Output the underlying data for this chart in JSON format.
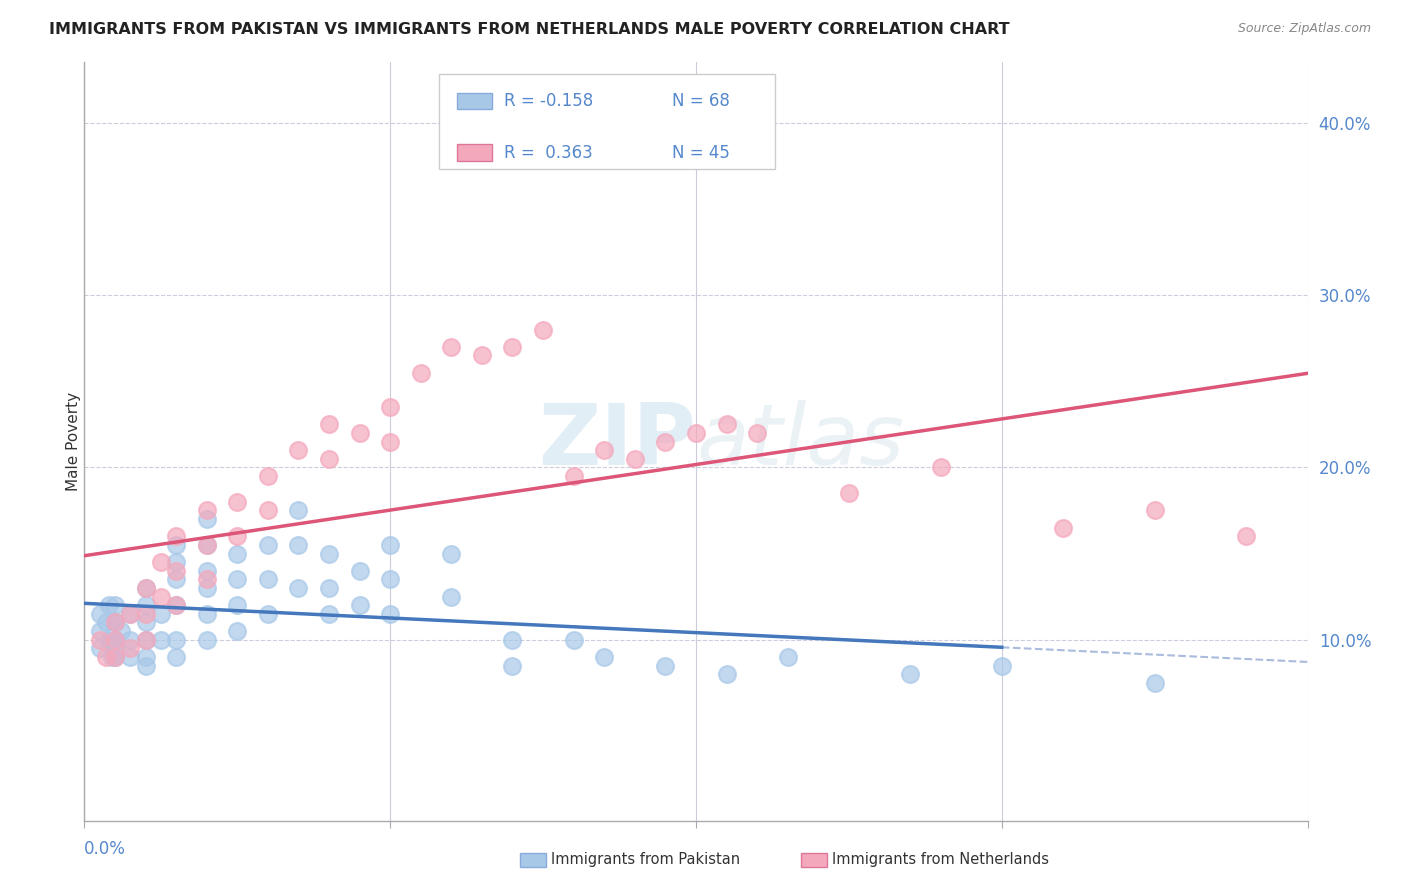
{
  "title": "IMMIGRANTS FROM PAKISTAN VS IMMIGRANTS FROM NETHERLANDS MALE POVERTY CORRELATION CHART",
  "source": "Source: ZipAtlas.com",
  "ylabel": "Male Poverty",
  "y_ticks": [
    "10.0%",
    "20.0%",
    "30.0%",
    "40.0%"
  ],
  "y_tick_vals": [
    0.1,
    0.2,
    0.3,
    0.4
  ],
  "xlim": [
    0.0,
    0.4
  ],
  "ylim": [
    -0.005,
    0.435
  ],
  "r_pakistan": -0.158,
  "n_pakistan": 68,
  "r_netherlands": 0.363,
  "n_netherlands": 45,
  "color_pakistan": "#a8c8e8",
  "color_netherlands": "#f4a8bc",
  "line_color_pakistan": "#4477bb",
  "line_color_netherlands": "#dd5577",
  "legend_label_pakistan": "Immigrants from Pakistan",
  "legend_label_netherlands": "Immigrants from Netherlands",
  "pak_x": [
    0.005,
    0.005,
    0.005,
    0.007,
    0.008,
    0.008,
    0.009,
    0.01,
    0.01,
    0.01,
    0.01,
    0.01,
    0.01,
    0.01,
    0.012,
    0.015,
    0.015,
    0.015,
    0.02,
    0.02,
    0.02,
    0.02,
    0.02,
    0.02,
    0.025,
    0.025,
    0.03,
    0.03,
    0.03,
    0.03,
    0.03,
    0.03,
    0.04,
    0.04,
    0.04,
    0.04,
    0.04,
    0.04,
    0.05,
    0.05,
    0.05,
    0.05,
    0.06,
    0.06,
    0.06,
    0.07,
    0.07,
    0.07,
    0.08,
    0.08,
    0.08,
    0.09,
    0.09,
    0.1,
    0.1,
    0.1,
    0.12,
    0.12,
    0.14,
    0.14,
    0.16,
    0.17,
    0.19,
    0.21,
    0.23,
    0.27,
    0.3,
    0.35
  ],
  "pak_y": [
    0.115,
    0.105,
    0.095,
    0.11,
    0.12,
    0.1,
    0.09,
    0.11,
    0.1,
    0.09,
    0.12,
    0.11,
    0.1,
    0.095,
    0.105,
    0.115,
    0.09,
    0.1,
    0.13,
    0.12,
    0.11,
    0.1,
    0.09,
    0.085,
    0.115,
    0.1,
    0.155,
    0.145,
    0.135,
    0.12,
    0.1,
    0.09,
    0.17,
    0.155,
    0.14,
    0.13,
    0.115,
    0.1,
    0.15,
    0.135,
    0.12,
    0.105,
    0.155,
    0.135,
    0.115,
    0.175,
    0.155,
    0.13,
    0.15,
    0.13,
    0.115,
    0.14,
    0.12,
    0.155,
    0.135,
    0.115,
    0.15,
    0.125,
    0.1,
    0.085,
    0.1,
    0.09,
    0.085,
    0.08,
    0.09,
    0.08,
    0.085,
    0.075
  ],
  "nl_x": [
    0.005,
    0.007,
    0.01,
    0.01,
    0.01,
    0.015,
    0.015,
    0.02,
    0.02,
    0.02,
    0.025,
    0.025,
    0.03,
    0.03,
    0.03,
    0.04,
    0.04,
    0.04,
    0.05,
    0.05,
    0.06,
    0.06,
    0.07,
    0.08,
    0.08,
    0.09,
    0.1,
    0.1,
    0.11,
    0.12,
    0.13,
    0.14,
    0.15,
    0.16,
    0.17,
    0.18,
    0.19,
    0.2,
    0.21,
    0.22,
    0.25,
    0.28,
    0.32,
    0.35,
    0.38
  ],
  "nl_y": [
    0.1,
    0.09,
    0.11,
    0.1,
    0.09,
    0.115,
    0.095,
    0.13,
    0.115,
    0.1,
    0.145,
    0.125,
    0.16,
    0.14,
    0.12,
    0.175,
    0.155,
    0.135,
    0.18,
    0.16,
    0.195,
    0.175,
    0.21,
    0.225,
    0.205,
    0.22,
    0.235,
    0.215,
    0.255,
    0.27,
    0.265,
    0.27,
    0.28,
    0.195,
    0.21,
    0.205,
    0.215,
    0.22,
    0.225,
    0.22,
    0.185,
    0.2,
    0.165,
    0.175,
    0.16
  ]
}
